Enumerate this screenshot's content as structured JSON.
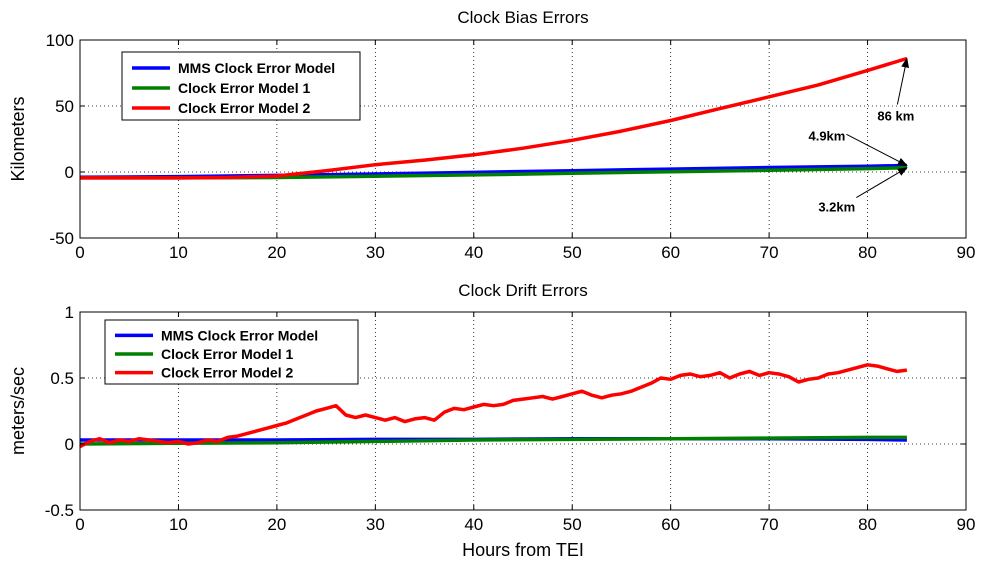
{
  "chart_data": [
    {
      "type": "line",
      "title": "Clock Bias Errors",
      "xlabel": "",
      "ylabel": "Kilometers",
      "xlim": [
        0,
        90
      ],
      "ylim": [
        -50,
        100
      ],
      "xticks": [
        0,
        10,
        20,
        30,
        40,
        50,
        60,
        70,
        80,
        90
      ],
      "yticks": [
        -50,
        0,
        50,
        100
      ],
      "grid": true,
      "legend_position": "top-left",
      "series": [
        {
          "name": "MMS Clock Error Model",
          "color": "#0000ff",
          "x": [
            0,
            10,
            15,
            20,
            30,
            40,
            50,
            60,
            70,
            80,
            84
          ],
          "y": [
            -4,
            -3.5,
            -3,
            -2.6,
            -1.5,
            -0.3,
            1,
            2.2,
            3.4,
            4.4,
            4.9
          ]
        },
        {
          "name": "Clock Error Model 1",
          "color": "#008000",
          "x": [
            0,
            10,
            20,
            30,
            40,
            50,
            60,
            70,
            80,
            84
          ],
          "y": [
            -4.5,
            -4.5,
            -4.2,
            -3.2,
            -2.2,
            -1,
            0.2,
            1.3,
            2.6,
            3.2
          ]
        },
        {
          "name": "Clock Error Model 2",
          "color": "#ff0000",
          "x": [
            0,
            10,
            15,
            20,
            25,
            30,
            35,
            40,
            45,
            50,
            55,
            60,
            65,
            70,
            75,
            80,
            84
          ],
          "y": [
            -4.5,
            -4.5,
            -4.2,
            -3,
            1,
            5.5,
            9,
            13,
            18,
            24,
            31,
            39,
            48,
            57,
            66,
            77,
            86
          ]
        }
      ],
      "annotations": [
        {
          "text": "86 km",
          "x": 81,
          "y": 39,
          "arrow_to": [
            84,
            86
          ]
        },
        {
          "text": "4.9km",
          "x": 74,
          "y": 24,
          "arrow_to": [
            84,
            4.9
          ]
        },
        {
          "text": "3.2km",
          "x": 75,
          "y": -30,
          "arrow_to": [
            84,
            3.2
          ]
        }
      ]
    },
    {
      "type": "line",
      "title": "Clock Drift Errors",
      "xlabel": "Hours from TEI",
      "ylabel": "meters/sec",
      "xlim": [
        0,
        90
      ],
      "ylim": [
        -0.5,
        1
      ],
      "xticks": [
        0,
        10,
        20,
        30,
        40,
        50,
        60,
        70,
        80,
        90
      ],
      "yticks": [
        -0.5,
        0,
        0.5,
        1
      ],
      "grid": true,
      "legend_position": "top-left",
      "series": [
        {
          "name": "MMS Clock Error Model",
          "color": "#0000ff",
          "x": [
            0,
            10,
            20,
            30,
            40,
            50,
            60,
            70,
            80,
            84
          ],
          "y": [
            0.03,
            0.03,
            0.03,
            0.035,
            0.035,
            0.04,
            0.04,
            0.04,
            0.035,
            0.03
          ]
        },
        {
          "name": "Clock Error Model 1",
          "color": "#008000",
          "x": [
            0,
            10,
            20,
            30,
            40,
            50,
            60,
            70,
            80,
            84
          ],
          "y": [
            0.0,
            0.005,
            0.01,
            0.02,
            0.03,
            0.035,
            0.04,
            0.045,
            0.05,
            0.05
          ]
        },
        {
          "name": "Clock Error Model 2",
          "color": "#ff0000",
          "x": [
            0,
            1,
            2,
            3,
            4,
            5,
            6,
            7,
            8,
            9,
            10,
            11,
            12,
            13,
            14,
            15,
            16,
            17,
            18,
            19,
            20,
            21,
            22,
            23,
            24,
            25,
            26,
            27,
            28,
            29,
            30,
            31,
            32,
            33,
            34,
            35,
            36,
            37,
            38,
            39,
            40,
            41,
            42,
            43,
            44,
            45,
            46,
            47,
            48,
            49,
            50,
            51,
            52,
            53,
            54,
            55,
            56,
            57,
            58,
            59,
            60,
            61,
            62,
            63,
            64,
            65,
            66,
            67,
            68,
            69,
            70,
            71,
            72,
            73,
            74,
            75,
            76,
            77,
            78,
            79,
            80,
            81,
            82,
            83,
            84
          ],
          "y": [
            -0.02,
            0.02,
            0.04,
            0.01,
            0.03,
            0.02,
            0.04,
            0.03,
            0.02,
            0.01,
            0.02,
            0.0,
            0.01,
            0.03,
            0.02,
            0.05,
            0.06,
            0.08,
            0.1,
            0.12,
            0.14,
            0.16,
            0.19,
            0.22,
            0.25,
            0.27,
            0.29,
            0.22,
            0.2,
            0.22,
            0.2,
            0.18,
            0.2,
            0.17,
            0.19,
            0.2,
            0.18,
            0.24,
            0.27,
            0.26,
            0.28,
            0.3,
            0.29,
            0.3,
            0.33,
            0.34,
            0.35,
            0.36,
            0.34,
            0.36,
            0.38,
            0.4,
            0.37,
            0.35,
            0.37,
            0.38,
            0.4,
            0.43,
            0.46,
            0.5,
            0.49,
            0.52,
            0.53,
            0.51,
            0.52,
            0.54,
            0.5,
            0.53,
            0.55,
            0.52,
            0.54,
            0.53,
            0.51,
            0.47,
            0.49,
            0.5,
            0.53,
            0.54,
            0.56,
            0.58,
            0.6,
            0.59,
            0.57,
            0.55,
            0.56
          ]
        }
      ],
      "annotations": []
    }
  ]
}
